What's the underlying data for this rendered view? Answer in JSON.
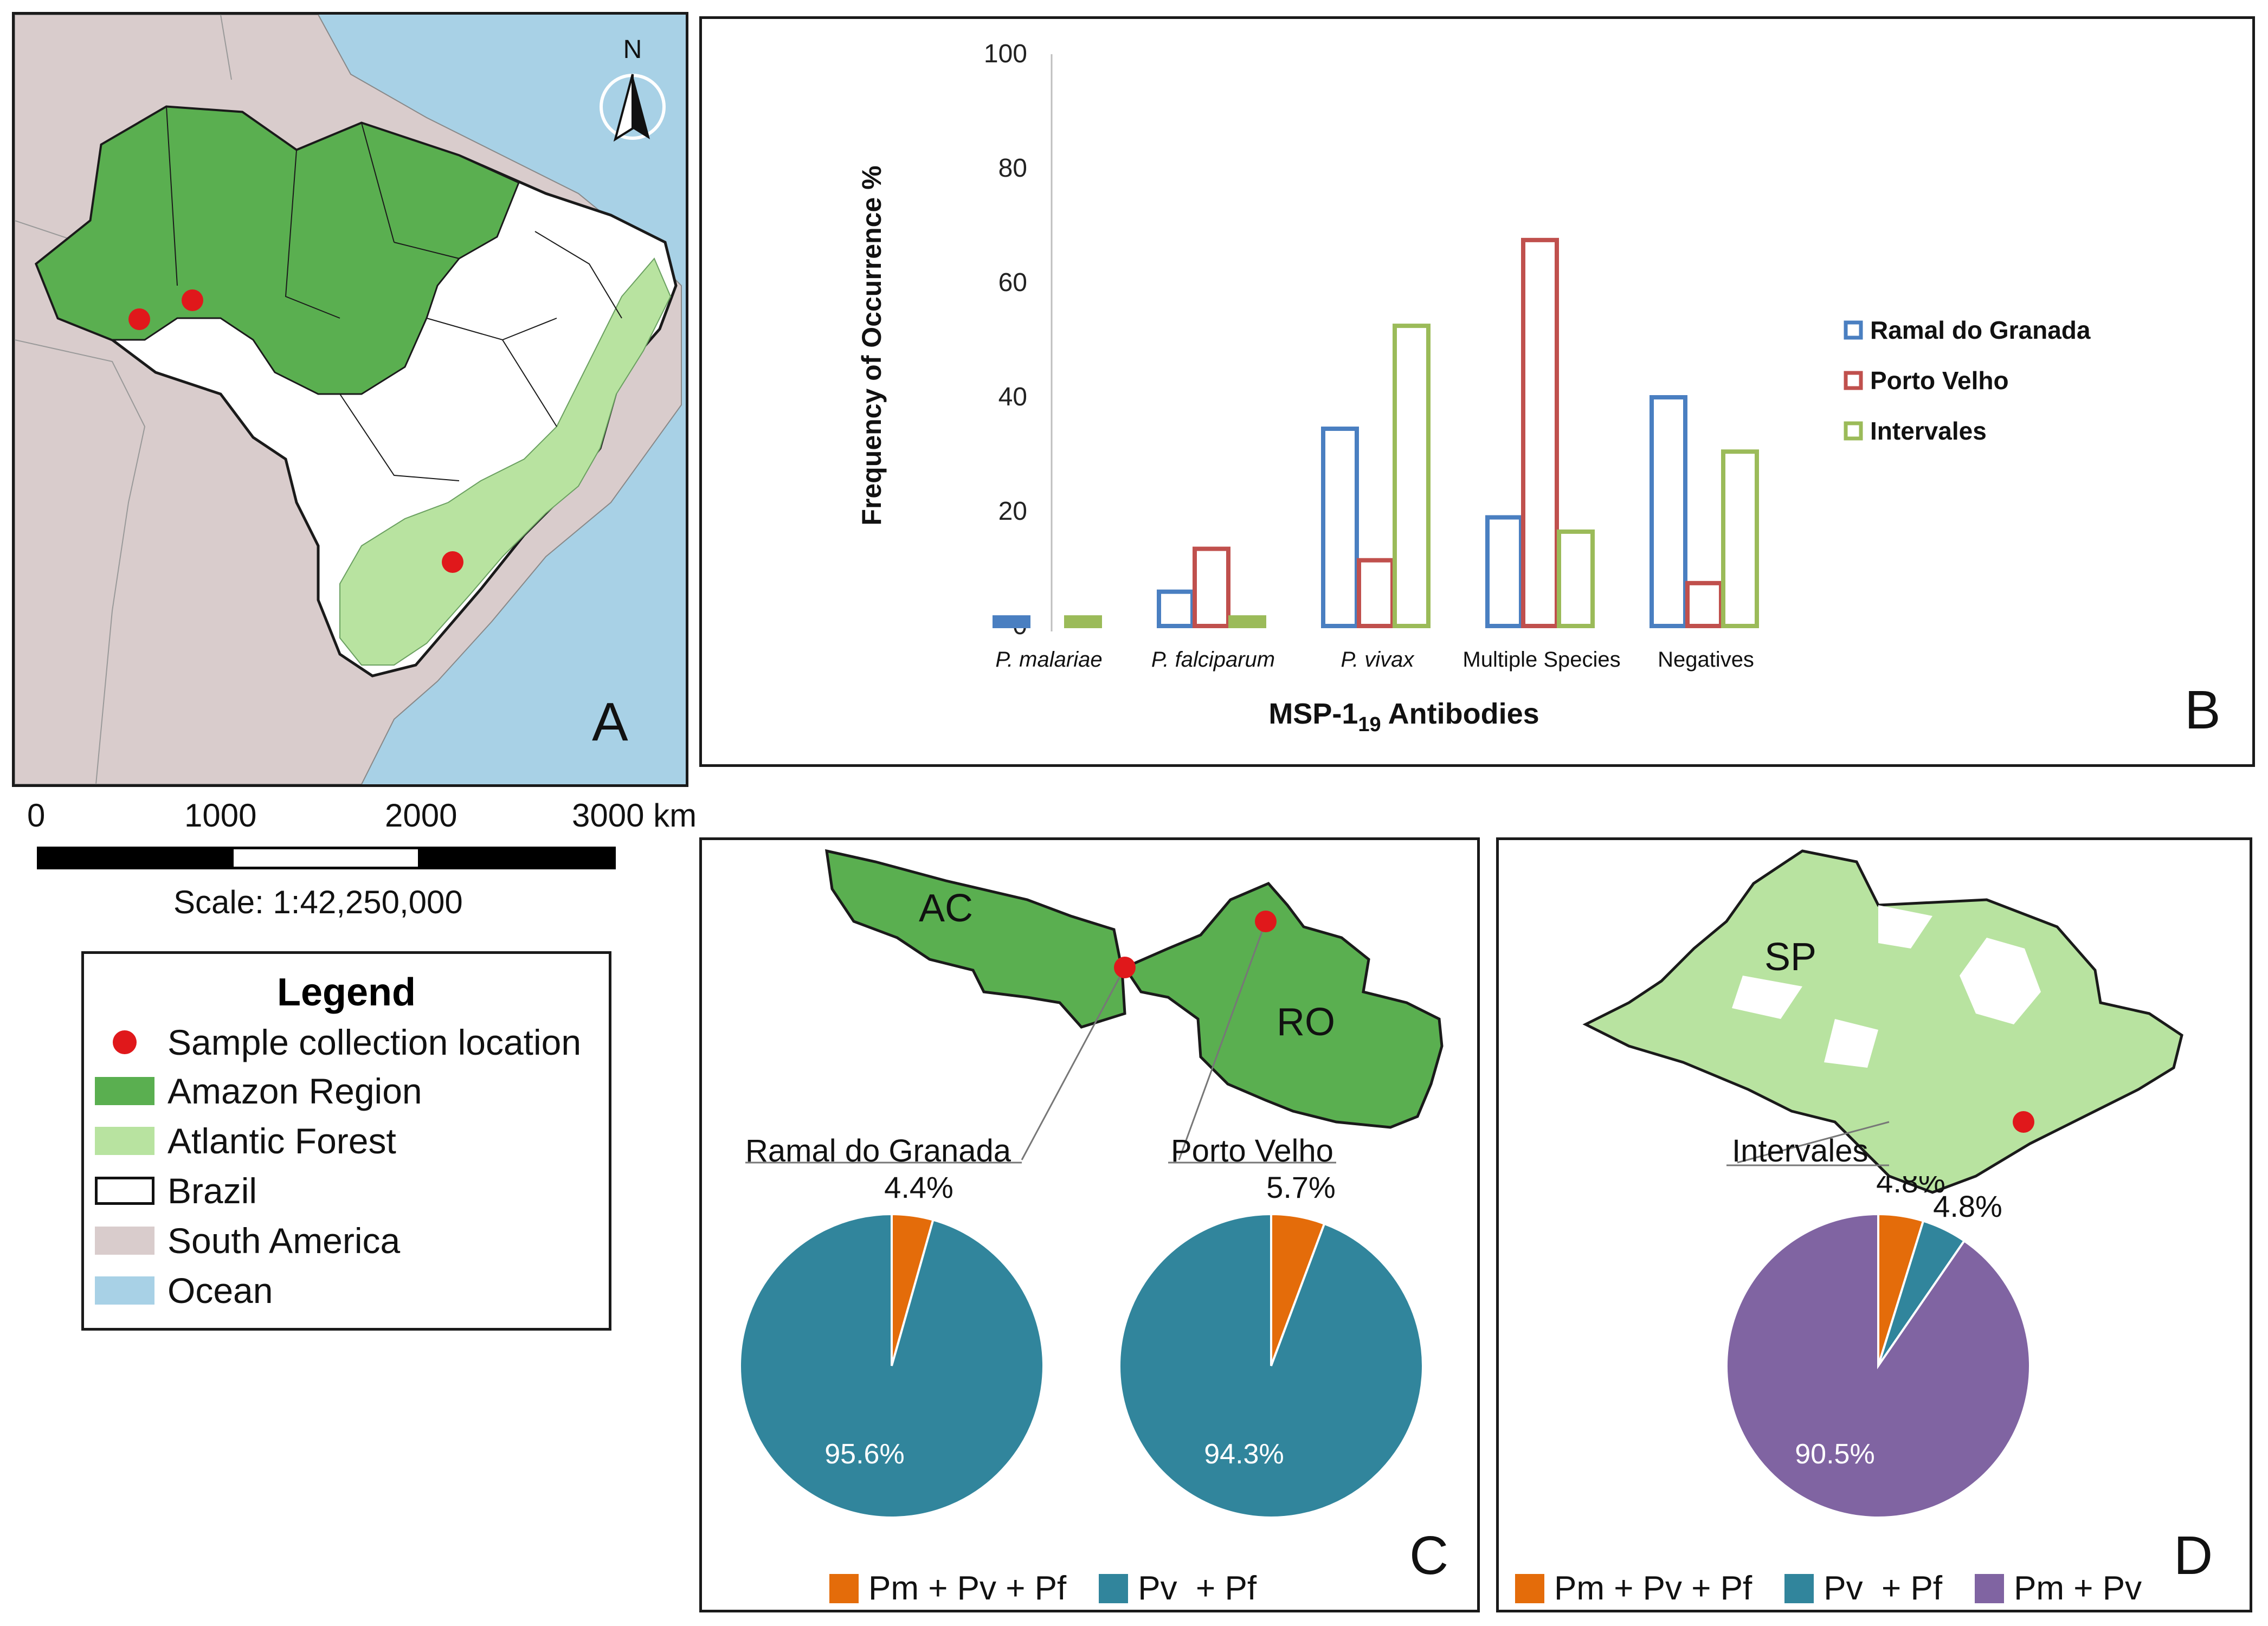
{
  "panels": {
    "a": {
      "letter": "A"
    },
    "b": {
      "letter": "B"
    },
    "c": {
      "letter": "C"
    },
    "d": {
      "letter": "D"
    }
  },
  "map": {
    "north_label": "N",
    "scale_ticks": [
      "0",
      "1000",
      "2000",
      "3000 km"
    ],
    "scale_text": "Scale: 1:42,250,000",
    "colors": {
      "ocean": "#a8d1e6",
      "south_america": "#d9cccc",
      "amazon": "#5aaf50",
      "atlantic": "#b8e3a0",
      "brazil": "#ffffff",
      "sample": "#e0181b"
    },
    "legend": {
      "title": "Legend",
      "items": [
        {
          "label": "Sample collection location",
          "type": "dot",
          "color": "#e0181b"
        },
        {
          "label": "Amazon Region",
          "type": "fill",
          "color": "#5aaf50"
        },
        {
          "label": "Atlantic Forest",
          "type": "fill",
          "color": "#b8e3a0"
        },
        {
          "label": "Brazil",
          "type": "outline",
          "color": "#ffffff"
        },
        {
          "label": "South America",
          "type": "fill",
          "color": "#d9cccc"
        },
        {
          "label": "Ocean",
          "type": "fill",
          "color": "#a8d1e6"
        }
      ]
    }
  },
  "chart_data": [
    {
      "type": "bar",
      "panel": "B",
      "title": "",
      "xlabel": "MSP-1",
      "xlabel_sub": "19",
      "xlabel_suffix": " Antibodies",
      "ylabel": "Frequency of Occurrence %",
      "ylim": [
        0,
        100
      ],
      "yticks": [
        "0",
        "20",
        "40",
        "60",
        "80",
        "100"
      ],
      "categories": [
        "P. malariae",
        "P. falciparum",
        "P. vivax",
        "Multiple Species",
        "Negatives"
      ],
      "category_italic": [
        true,
        true,
        true,
        false,
        false
      ],
      "legend_position": "right",
      "series": [
        {
          "name": "Ramal do Granada",
          "color": "#4a7fc1",
          "values": [
            1.5,
            6,
            34.5,
            19,
            40
          ]
        },
        {
          "name": "Porto Velho",
          "color": "#c0504d",
          "values": [
            0,
            13.5,
            11.5,
            67.5,
            7.5
          ]
        },
        {
          "name": "Intervales",
          "color": "#9bbb59",
          "values": [
            1.5,
            1.5,
            52.5,
            16.5,
            30.5
          ]
        }
      ]
    },
    {
      "type": "pie",
      "panel": "C",
      "label": "Ramal do Granada",
      "slices": [
        {
          "name": "Pm + Pv + Pf",
          "value": 4.4,
          "label": "4.4%",
          "color": "#e46c0a"
        },
        {
          "name": "Pv + Pf",
          "value": 95.6,
          "label": "95.6%",
          "color": "#31859c"
        }
      ]
    },
    {
      "type": "pie",
      "panel": "C",
      "label": "Porto Velho",
      "slices": [
        {
          "name": "Pm + Pv + Pf",
          "value": 5.7,
          "label": "5.7%",
          "color": "#e46c0a"
        },
        {
          "name": "Pv + Pf",
          "value": 94.3,
          "label": "94.3%",
          "color": "#31859c"
        }
      ]
    },
    {
      "type": "pie",
      "panel": "D",
      "label": "Intervales",
      "slices": [
        {
          "name": "Pm + Pv + Pf",
          "value": 4.8,
          "label": "4.8%",
          "color": "#e46c0a"
        },
        {
          "name": "Pv + Pf",
          "value": 4.8,
          "label": "4.8%",
          "color": "#31859c"
        },
        {
          "name": "Pm + Pv",
          "value": 90.5,
          "label": "90.5%",
          "color": "#8064a2"
        }
      ]
    }
  ],
  "maps_c": {
    "state1": "AC",
    "state2": "RO"
  },
  "maps_d": {
    "state": "SP"
  },
  "pie_legend_c": [
    {
      "label": "Pm + Pv + Pf",
      "color": "#e46c0a"
    },
    {
      "label": "Pv  + Pf",
      "color": "#31859c"
    }
  ],
  "pie_legend_d": [
    {
      "label": "Pm + Pv + Pf",
      "color": "#e46c0a"
    },
    {
      "label": "Pv  + Pf",
      "color": "#31859c"
    },
    {
      "label": "Pm + Pv",
      "color": "#8064a2"
    }
  ]
}
